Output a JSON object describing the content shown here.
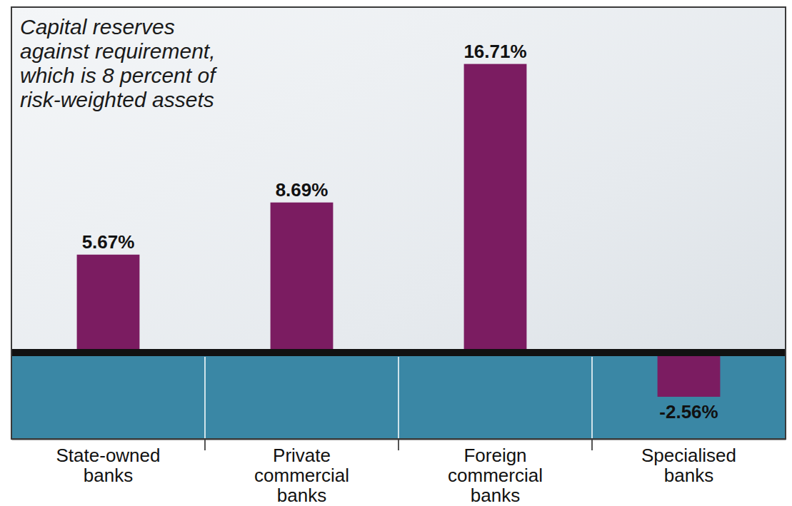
{
  "chart_data": {
    "type": "bar",
    "title": "Capital reserves against requirement, which is 8 percent of risk-weighted assets",
    "categories": [
      "State-owned banks",
      "Private commercial banks",
      "Foreign commercial banks",
      "Specialised banks"
    ],
    "values": [
      5.67,
      8.69,
      16.71,
      -2.56
    ],
    "value_labels": [
      "5.67%",
      "8.69%",
      "16.71%",
      "-2.56%"
    ],
    "color": "#7b1c61",
    "ylim": [
      -5,
      20
    ],
    "grid": false,
    "data_labels": true,
    "tick_labels": "x"
  }
}
